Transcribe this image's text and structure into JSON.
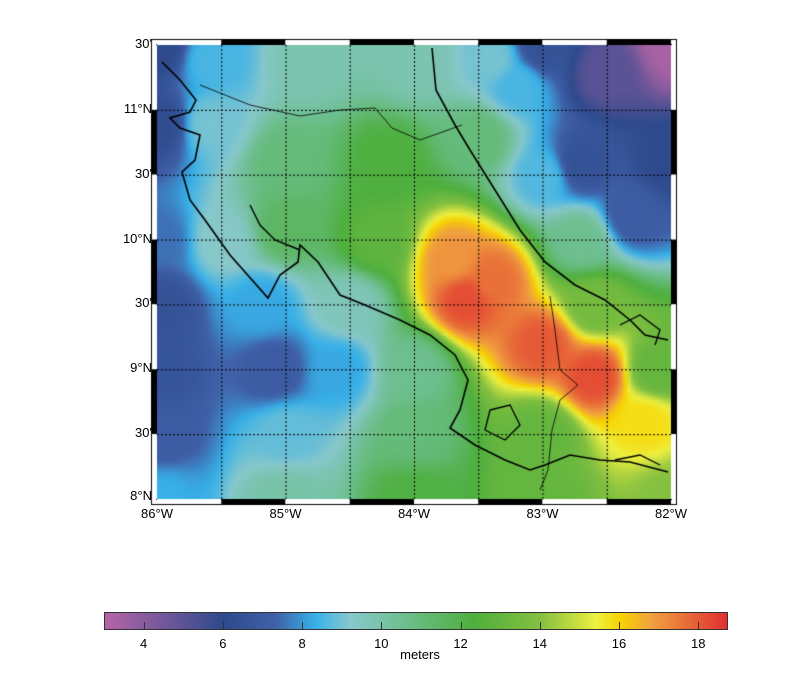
{
  "map": {
    "lon_range": [
      -86,
      -82
    ],
    "lat_range": [
      8,
      11.5
    ],
    "lat_labels": [
      {
        "lat": 11.5,
        "text": "30'"
      },
      {
        "lat": 11,
        "text": "11°N"
      },
      {
        "lat": 10.5,
        "text": "30'"
      },
      {
        "lat": 10,
        "text": "10°N"
      },
      {
        "lat": 9.5,
        "text": "30'"
      },
      {
        "lat": 9,
        "text": "9°N"
      },
      {
        "lat": 8.5,
        "text": "30'"
      },
      {
        "lat": 8,
        "text": "8°N"
      }
    ],
    "lon_labels": [
      {
        "lon": -86,
        "text": "86°W"
      },
      {
        "lon": -85,
        "text": "85°W"
      },
      {
        "lon": -84,
        "text": "84°W"
      },
      {
        "lon": -83,
        "text": "83°W"
      },
      {
        "lon": -82,
        "text": "82°W"
      }
    ],
    "grid": "dotted, every 30'"
  },
  "colorbar": {
    "range": [
      3,
      18.7
    ],
    "ticks": [
      "4",
      "6",
      "8",
      "10",
      "12",
      "14",
      "16",
      "18"
    ],
    "label": "meters",
    "colormap": [
      [
        3,
        "#b565a7"
      ],
      [
        6,
        "#2e4a8c"
      ],
      [
        7.3,
        "#4060a8"
      ],
      [
        8.3,
        "#38b0e8"
      ],
      [
        9.2,
        "#88c8cc"
      ],
      [
        10.5,
        "#6ebf90"
      ],
      [
        12.3,
        "#4eaf3e"
      ],
      [
        14,
        "#84c040"
      ],
      [
        15.4,
        "#eef040"
      ],
      [
        16,
        "#f8d400"
      ],
      [
        16.8,
        "#f0a040"
      ],
      [
        18.7,
        "#e03030"
      ]
    ]
  }
}
